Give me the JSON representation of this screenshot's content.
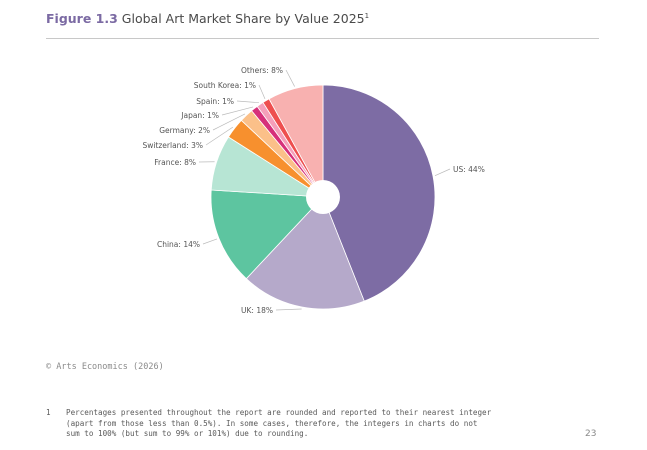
{
  "figure": {
    "number": "Figure 1.3",
    "title": "Global Art Market Share by Value 2025",
    "title_footnote_ref": "1"
  },
  "colors": {
    "title_accent": "#7b6aa3",
    "rule": "#c8c8c8",
    "leader_line": "#bbbbbb"
  },
  "chart_data": {
    "type": "pie",
    "donut_hole": true,
    "title": "Global Art Market Share by Value 2025",
    "unit": "%",
    "slices": [
      {
        "label": "US",
        "value": 44,
        "display": "US: 44%",
        "color": "#7d6ca4"
      },
      {
        "label": "UK",
        "value": 18,
        "display": "UK: 18%",
        "color": "#b5a9ca"
      },
      {
        "label": "China",
        "value": 14,
        "display": "China: 14%",
        "color": "#5dc5a0"
      },
      {
        "label": "France",
        "value": 8,
        "display": "France: 8%",
        "color": "#b7e5d4"
      },
      {
        "label": "Switzerland",
        "value": 3,
        "display": "Switzerland: 3%",
        "color": "#f7902e"
      },
      {
        "label": "Germany",
        "value": 2,
        "display": "Germany: 2%",
        "color": "#fbc089"
      },
      {
        "label": "Japan",
        "value": 1,
        "display": "Japan: 1%",
        "color": "#d6307a"
      },
      {
        "label": "Spain",
        "value": 1,
        "display": "Spain: 1%",
        "color": "#f59fba"
      },
      {
        "label": "South Korea",
        "value": 1,
        "display": "South Korea: 1%",
        "color": "#ee4f4f"
      },
      {
        "label": "Others",
        "value": 8,
        "display": "Others: 8%",
        "color": "#f8b1b0"
      }
    ]
  },
  "source": "© Arts Economics (2026)",
  "footnote": {
    "marker": "1",
    "text": "Percentages presented throughout the report are rounded and reported to their nearest integer\n(apart from those less than 0.5%). In some cases, therefore, the integers in charts do not\nsum to 100% (but sum to 99% or 101%) due to rounding."
  },
  "page_number": "23"
}
